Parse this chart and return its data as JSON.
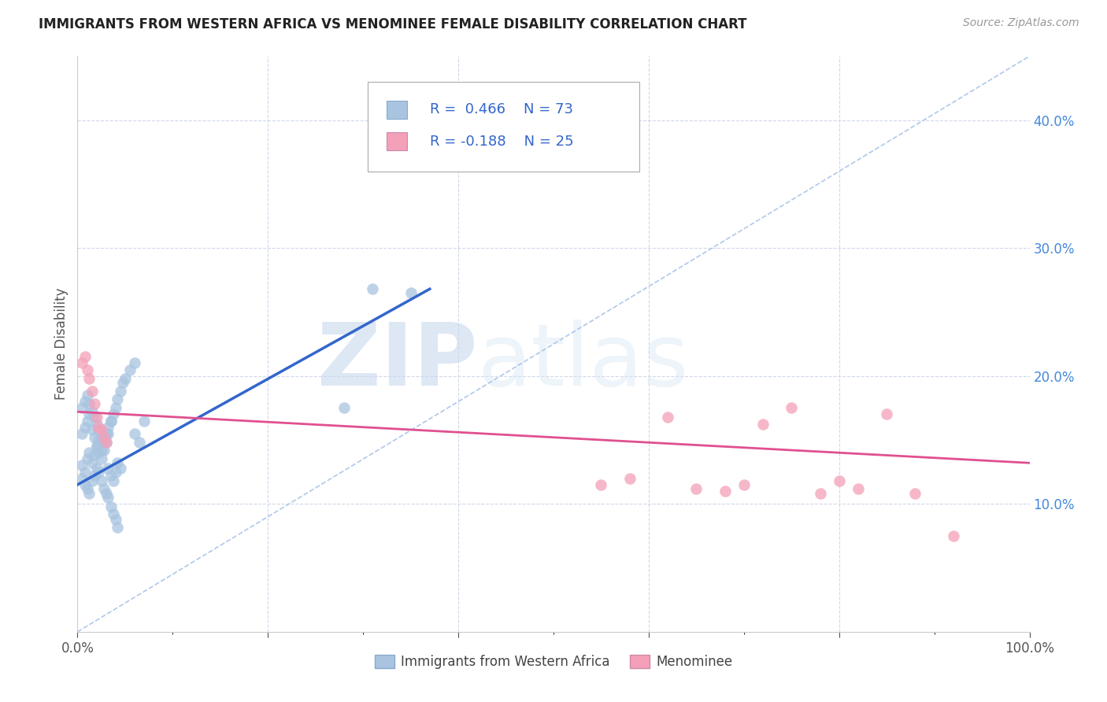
{
  "title": "IMMIGRANTS FROM WESTERN AFRICA VS MENOMINEE FEMALE DISABILITY CORRELATION CHART",
  "source": "Source: ZipAtlas.com",
  "ylabel": "Female Disability",
  "xlim": [
    0,
    1.0
  ],
  "ylim": [
    0,
    0.45
  ],
  "yticks": [
    0.0,
    0.1,
    0.2,
    0.3,
    0.4
  ],
  "yticklabels": [
    "",
    "10.0%",
    "20.0%",
    "30.0%",
    "40.0%"
  ],
  "blue_R": 0.466,
  "blue_N": 73,
  "pink_R": -0.188,
  "pink_N": 25,
  "blue_color": "#a8c4e0",
  "pink_color": "#f4a0b8",
  "blue_line_color": "#3366cc",
  "pink_line_color": "#e05090",
  "diagonal_color": "#b0c8e8",
  "watermark_zip": "ZIP",
  "watermark_atlas": "atlas",
  "legend_label_blue": "Immigrants from Western Africa",
  "legend_label_pink": "Menominee",
  "blue_scatter_x": [
    0.005,
    0.008,
    0.01,
    0.012,
    0.015,
    0.018,
    0.02,
    0.022,
    0.025,
    0.028,
    0.03,
    0.032,
    0.035,
    0.038,
    0.04,
    0.042,
    0.045,
    0.005,
    0.008,
    0.01,
    0.012,
    0.015,
    0.018,
    0.02,
    0.022,
    0.025,
    0.028,
    0.03,
    0.032,
    0.035,
    0.005,
    0.008,
    0.01,
    0.012,
    0.015,
    0.018,
    0.02,
    0.022,
    0.025,
    0.028,
    0.03,
    0.032,
    0.035,
    0.038,
    0.04,
    0.042,
    0.005,
    0.008,
    0.01,
    0.012,
    0.015,
    0.018,
    0.02,
    0.022,
    0.025,
    0.028,
    0.03,
    0.032,
    0.035,
    0.038,
    0.04,
    0.042,
    0.045,
    0.048,
    0.05,
    0.055,
    0.06,
    0.28,
    0.31,
    0.35,
    0.06,
    0.065,
    0.07
  ],
  "blue_scatter_y": [
    0.13,
    0.125,
    0.135,
    0.14,
    0.132,
    0.138,
    0.145,
    0.15,
    0.142,
    0.148,
    0.155,
    0.128,
    0.122,
    0.118,
    0.125,
    0.132,
    0.128,
    0.155,
    0.16,
    0.165,
    0.17,
    0.158,
    0.152,
    0.145,
    0.14,
    0.135,
    0.142,
    0.148,
    0.155,
    0.165,
    0.12,
    0.115,
    0.112,
    0.108,
    0.118,
    0.122,
    0.128,
    0.125,
    0.118,
    0.112,
    0.108,
    0.105,
    0.098,
    0.092,
    0.088,
    0.082,
    0.175,
    0.18,
    0.185,
    0.178,
    0.172,
    0.168,
    0.162,
    0.158,
    0.152,
    0.148,
    0.155,
    0.16,
    0.165,
    0.17,
    0.175,
    0.182,
    0.188,
    0.195,
    0.198,
    0.205,
    0.21,
    0.175,
    0.268,
    0.265,
    0.155,
    0.148,
    0.165
  ],
  "pink_scatter_x": [
    0.005,
    0.008,
    0.01,
    0.012,
    0.015,
    0.018,
    0.02,
    0.022,
    0.025,
    0.028,
    0.03,
    0.55,
    0.58,
    0.62,
    0.65,
    0.68,
    0.7,
    0.72,
    0.75,
    0.78,
    0.8,
    0.82,
    0.85,
    0.88,
    0.92
  ],
  "pink_scatter_y": [
    0.21,
    0.215,
    0.205,
    0.198,
    0.188,
    0.178,
    0.168,
    0.16,
    0.158,
    0.152,
    0.148,
    0.115,
    0.12,
    0.168,
    0.112,
    0.11,
    0.115,
    0.162,
    0.175,
    0.108,
    0.118,
    0.112,
    0.17,
    0.108,
    0.075
  ],
  "blue_line_x0": 0.0,
  "blue_line_x1": 0.37,
  "blue_line_y0": 0.115,
  "blue_line_y1": 0.268,
  "pink_line_x0": 0.0,
  "pink_line_x1": 1.0,
  "pink_line_y0": 0.172,
  "pink_line_y1": 0.132
}
